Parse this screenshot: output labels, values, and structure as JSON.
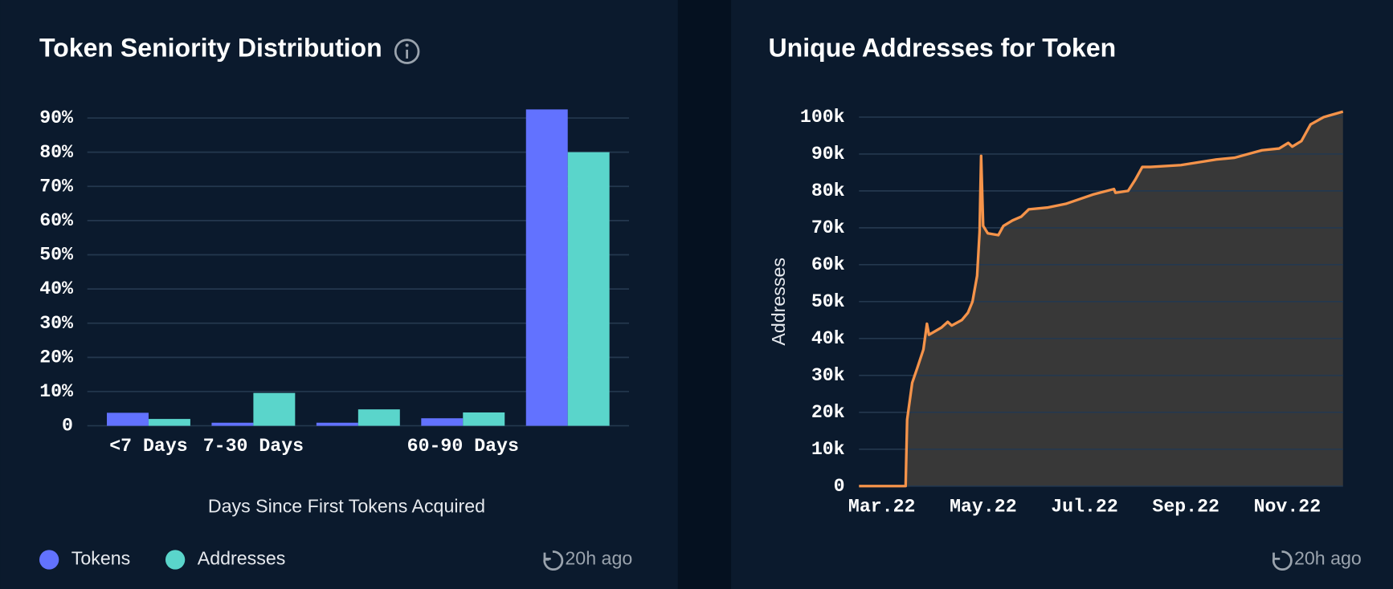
{
  "chart_data": [
    {
      "type": "bar",
      "title": "Token Seniority Distribution",
      "x_label": "Days Since First Tokens Acquired",
      "updated": "20h ago",
      "categories": [
        "<7 Days",
        "7-30 Days",
        null,
        "60-90 Days",
        null
      ],
      "series": [
        {
          "name": "Tokens",
          "color": "#6272ff",
          "values": [
            3.8,
            0.9,
            0.9,
            2.2,
            92.5
          ]
        },
        {
          "name": "Addresses",
          "color": "#5ad5cb",
          "values": [
            2,
            9.6,
            4.8,
            3.9,
            80
          ]
        }
      ],
      "ylim": [
        0,
        90
      ],
      "yticks": [
        0,
        {
          "value": 10,
          "label": "10%"
        },
        {
          "value": 20,
          "label": "20%"
        },
        {
          "value": 30,
          "label": "30%"
        },
        {
          "value": 40,
          "label": "40%"
        },
        {
          "value": 50,
          "label": "50%"
        },
        {
          "value": 60,
          "label": "60%"
        },
        {
          "value": 70,
          "label": "70%"
        },
        {
          "value": 80,
          "label": "80%"
        },
        {
          "value": 90,
          "label": "90%"
        }
      ],
      "grid": true
    },
    {
      "type": "area",
      "title": "Unique Addresses for Token",
      "y_label": "Addresses",
      "updated": "20h ago",
      "x": [
        2.55,
        3.47,
        3.5,
        3.6,
        3.7,
        3.82,
        3.89,
        3.93,
        4.18,
        4.3,
        4.38,
        4.58,
        4.7,
        4.79,
        4.88,
        4.93,
        4.96,
        5.0,
        5.09,
        5.3,
        5.4,
        5.58,
        5.75,
        5.9,
        6.28,
        6.63,
        7.16,
        7.58,
        7.61,
        7.86,
        8.0,
        8.14,
        8.3,
        8.9,
        9.6,
        9.96,
        10.5,
        10.84,
        11.02,
        11.1,
        11.28,
        11.46,
        11.72,
        11.98,
        12.1
      ],
      "series": [
        {
          "name": "Addresses",
          "color": "#f5934a",
          "fill": "#383838",
          "values": [
            0,
            0,
            18000,
            28000,
            32000,
            37000,
            44000,
            41000,
            43000,
            44500,
            43500,
            45000,
            47000,
            50000,
            57000,
            69000,
            89500,
            70500,
            68500,
            68000,
            70500,
            72000,
            73000,
            75000,
            75500,
            76500,
            79000,
            80500,
            79500,
            80000,
            83000,
            86500,
            86500,
            87000,
            88500,
            89000,
            91000,
            91500,
            93000,
            92000,
            93500,
            98000,
            100000,
            101000,
            101500
          ]
        }
      ],
      "xlim": [
        2.55,
        12.1
      ],
      "xticks": [
        {
          "value": 3,
          "label": "Mar.22"
        },
        {
          "value": 5,
          "label": "May.22"
        },
        {
          "value": 7,
          "label": "Jul.22"
        },
        {
          "value": 9,
          "label": "Sep.22"
        },
        {
          "value": 11,
          "label": "Nov.22"
        }
      ],
      "ylim": [
        0,
        100000
      ],
      "yticks": [
        0,
        {
          "value": 10000,
          "label": "10k"
        },
        {
          "value": 20000,
          "label": "20k"
        },
        {
          "value": 30000,
          "label": "30k"
        },
        {
          "value": 40000,
          "label": "40k"
        },
        {
          "value": 50000,
          "label": "50k"
        },
        {
          "value": 60000,
          "label": "60k"
        },
        {
          "value": 70000,
          "label": "70k"
        },
        {
          "value": 80000,
          "label": "80k"
        },
        {
          "value": 90000,
          "label": "90k"
        },
        {
          "value": 100000,
          "label": "100k"
        }
      ],
      "grid": true
    }
  ]
}
